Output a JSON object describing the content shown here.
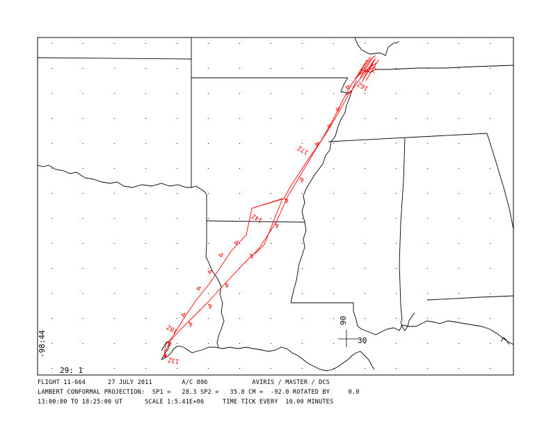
{
  "map": {
    "corner_label": "-98:44",
    "corner_label_bottom": "29: 1",
    "grid_label_lon": "90",
    "grid_label_lat": "30",
    "time_labels": [
      "16Z",
      "17Z",
      "14Z",
      "18Z",
      "13Z"
    ],
    "track_color": "#ff0000"
  },
  "footer": {
    "line1": "FLIGHT 11-664      27 JULY 2011        A/C 806            AVIRIS / MASTER / DCS",
    "line2": "LAMBERT CONFORMAL PROJECTION:  SP1 =   28.3 SP2 =   35.8 CM =  -92.0 ROTATED BY     0.0",
    "line3": "13:00:00 TO 18:25:00 UT      SCALE 1:5.41E+06     TIME TICK EVERY  10.00 MINUTES"
  }
}
